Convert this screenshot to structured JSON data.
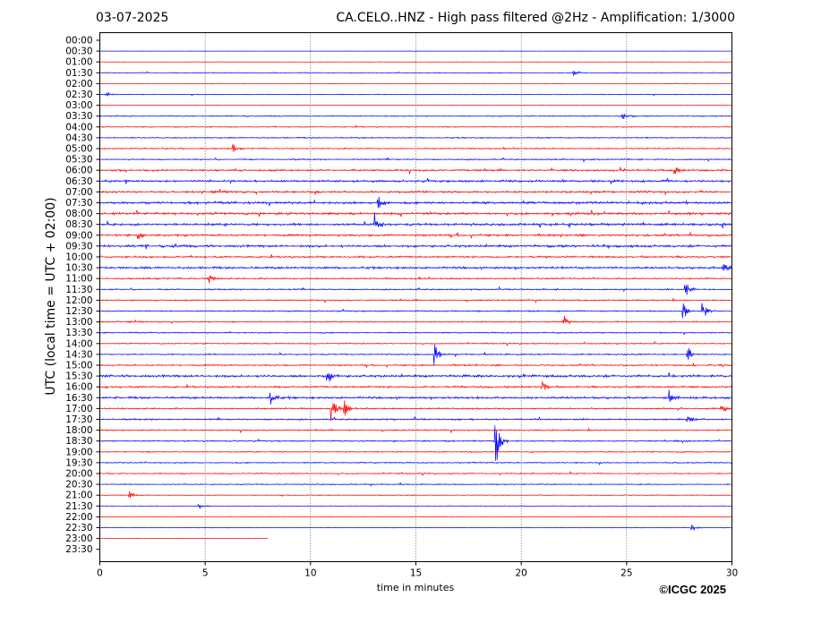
{
  "header": {
    "date": "03-07-2025",
    "title": "CA.CELO..HNZ - High pass filtered @2Hz - Amplification: 1/3000"
  },
  "footer": {
    "copyright": "©ICGC 2025"
  },
  "colors": {
    "trace_a": "#ff0000",
    "trace_b": "#0000ff",
    "axes": "#000000",
    "grid": "#000000"
  },
  "chart_data": {
    "type": "line",
    "subtype": "helicorder",
    "xlabel": "time in minutes",
    "ylabel": "UTC (local time = UTC + 02:00)",
    "xlim": [
      0,
      30
    ],
    "x_ticks": [
      "0",
      "5",
      "10",
      "15",
      "20",
      "25",
      "30"
    ],
    "x_tick_values": [
      0,
      5,
      10,
      15,
      20,
      25,
      30
    ],
    "grid": "vertical dotted lines at x ticks",
    "rows": [
      "00:00",
      "00:30",
      "01:00",
      "01:30",
      "02:00",
      "02:30",
      "03:00",
      "03:30",
      "04:00",
      "04:30",
      "05:00",
      "05:30",
      "06:00",
      "06:30",
      "07:00",
      "07:30",
      "08:00",
      "08:30",
      "09:00",
      "09:30",
      "10:00",
      "10:30",
      "11:00",
      "11:30",
      "12:00",
      "12:30",
      "13:00",
      "13:30",
      "14:00",
      "14:30",
      "15:00",
      "15:30",
      "16:00",
      "16:30",
      "17:00",
      "17:30",
      "18:00",
      "18:30",
      "19:00",
      "19:30",
      "20:00",
      "20:30",
      "21:00",
      "21:30",
      "22:00",
      "22:30",
      "23:00",
      "23:30"
    ],
    "trace_colors_alternate": [
      "#ff0000",
      "#0000ff"
    ],
    "trace_duration_minutes": {
      "00:00": 0,
      "00:30": 30,
      "23:00": 8,
      "23:30": 0
    },
    "row_noise_level": [
      0.1,
      0.1,
      0.15,
      0.3,
      0.15,
      0.3,
      0.2,
      0.4,
      0.4,
      0.45,
      0.5,
      0.5,
      0.7,
      0.8,
      0.8,
      0.9,
      0.9,
      0.9,
      0.8,
      0.9,
      0.7,
      0.8,
      0.6,
      0.5,
      0.5,
      0.5,
      0.5,
      0.45,
      0.45,
      0.5,
      0.6,
      0.9,
      0.7,
      0.8,
      0.6,
      0.6,
      0.5,
      0.5,
      0.45,
      0.45,
      0.45,
      0.4,
      0.3,
      0.25,
      0.25,
      0.25,
      0.15,
      0.0
    ],
    "events": [
      {
        "row": "01:30",
        "minute": 22.5,
        "amp": 4
      },
      {
        "row": "02:30",
        "minute": 0.3,
        "amp": 4
      },
      {
        "row": "03:30",
        "minute": 24.8,
        "amp": 5
      },
      {
        "row": "05:00",
        "minute": 6.3,
        "amp": 5
      },
      {
        "row": "06:00",
        "minute": 27.3,
        "amp": 5
      },
      {
        "row": "07:30",
        "minute": 13.2,
        "amp": 10
      },
      {
        "row": "08:30",
        "minute": 13.0,
        "amp": 12
      },
      {
        "row": "09:00",
        "minute": 1.8,
        "amp": 6
      },
      {
        "row": "10:30",
        "minute": 29.6,
        "amp": 6
      },
      {
        "row": "11:00",
        "minute": 5.2,
        "amp": 7
      },
      {
        "row": "11:30",
        "minute": 27.8,
        "amp": 10
      },
      {
        "row": "12:30",
        "minute": 27.7,
        "amp": 10
      },
      {
        "row": "12:30",
        "minute": 28.6,
        "amp": 12
      },
      {
        "row": "13:00",
        "minute": 22.0,
        "amp": 8
      },
      {
        "row": "14:30",
        "minute": 15.9,
        "amp": 12
      },
      {
        "row": "14:30",
        "minute": 27.9,
        "amp": 10
      },
      {
        "row": "15:30",
        "minute": 10.8,
        "amp": 10
      },
      {
        "row": "16:00",
        "minute": 21.0,
        "amp": 10
      },
      {
        "row": "16:30",
        "minute": 8.1,
        "amp": 9
      },
      {
        "row": "16:30",
        "minute": 27.0,
        "amp": 8
      },
      {
        "row": "17:00",
        "minute": 11.0,
        "amp": 14
      },
      {
        "row": "17:00",
        "minute": 11.6,
        "amp": 12
      },
      {
        "row": "17:00",
        "minute": 29.5,
        "amp": 6
      },
      {
        "row": "17:30",
        "minute": 27.9,
        "amp": 6
      },
      {
        "row": "18:30",
        "minute": 18.8,
        "amp": 30
      },
      {
        "row": "19:30",
        "minute": 30.0,
        "amp": 5
      },
      {
        "row": "21:00",
        "minute": 1.4,
        "amp": 5
      },
      {
        "row": "21:30",
        "minute": 4.7,
        "amp": 4
      },
      {
        "row": "22:30",
        "minute": 28.1,
        "amp": 4
      }
    ]
  }
}
